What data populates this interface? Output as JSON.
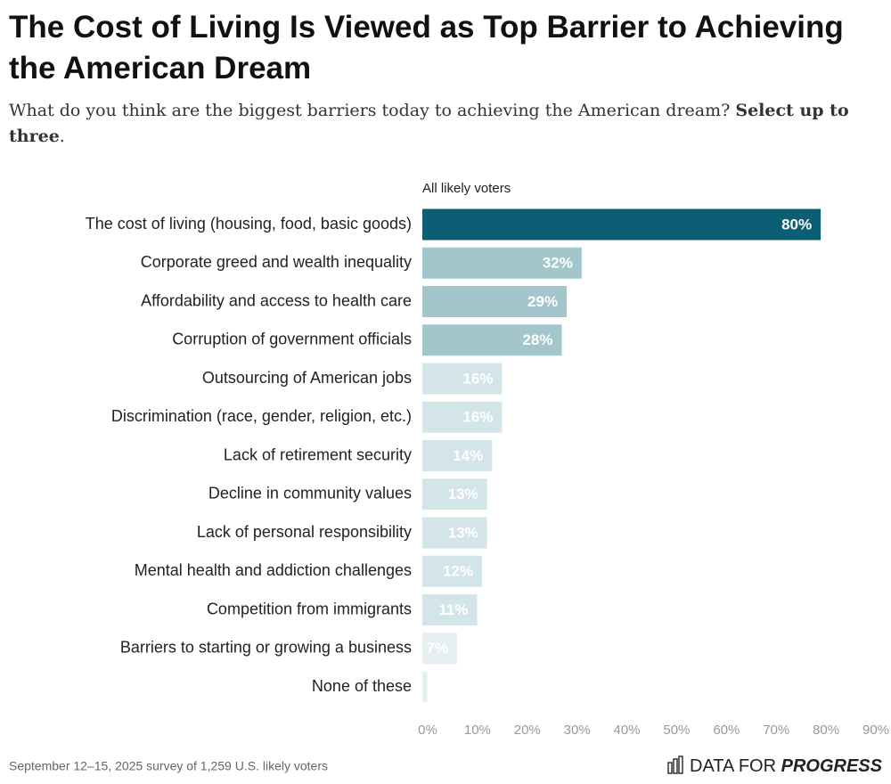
{
  "chart_data": {
    "type": "hbar",
    "title": "The Cost of Living Is Viewed as Top Barrier to Achieving the American Dream",
    "subtitle": "What do you think are the biggest barriers today to achieving the American dream?",
    "subtitle_emphasis": "Select up to three",
    "subtitle_end": ".",
    "series_name": "All likely voters",
    "categories": [
      "The cost of living (housing, food, basic goods)",
      "Corporate greed and wealth inequality",
      "Affordability and access to health care",
      "Corruption of government officials",
      "Outsourcing of American jobs",
      "Discrimination (race, gender, religion, etc.)",
      "Lack of retirement security",
      "Decline in community values",
      "Lack of personal responsibility",
      "Mental health and addiction challenges",
      "Competition from immigrants",
      "Barriers to starting or growing a business",
      "None of these"
    ],
    "values": [
      80,
      32,
      29,
      28,
      16,
      16,
      14,
      13,
      13,
      12,
      11,
      7,
      1
    ],
    "value_labels": [
      "80%",
      "32%",
      "29%",
      "28%",
      "16%",
      "16%",
      "14%",
      "13%",
      "13%",
      "12%",
      "11%",
      "7%",
      null
    ],
    "colors": [
      "#0b5e73",
      "#a3c6cc",
      "#a3c6cc",
      "#a3c6cc",
      "#d3e5e8",
      "#d3e5e8",
      "#d3e5e8",
      "#d3e5e8",
      "#d3e5e8",
      "#d3e5e8",
      "#d3e5e8",
      "#e6f0f2",
      "#e6f0f2"
    ],
    "xlim": [
      0,
      90
    ],
    "xticks": [
      {
        "value": 0,
        "label": "0%"
      },
      {
        "value": 10,
        "label": "10%"
      },
      {
        "value": 20,
        "label": "20%"
      },
      {
        "value": 30,
        "label": "30%"
      },
      {
        "value": 40,
        "label": "40%"
      },
      {
        "value": 50,
        "label": "50%"
      },
      {
        "value": 60,
        "label": "60%"
      },
      {
        "value": 70,
        "label": "70%"
      },
      {
        "value": 80,
        "label": "80%"
      },
      {
        "value": 90,
        "label": "90%"
      }
    ],
    "source": "September 12–15, 2025 survey of 1,259 U.S. likely voters",
    "logo": {
      "prefix": "DATA FOR",
      "emphasis": "PROGRESS"
    }
  }
}
